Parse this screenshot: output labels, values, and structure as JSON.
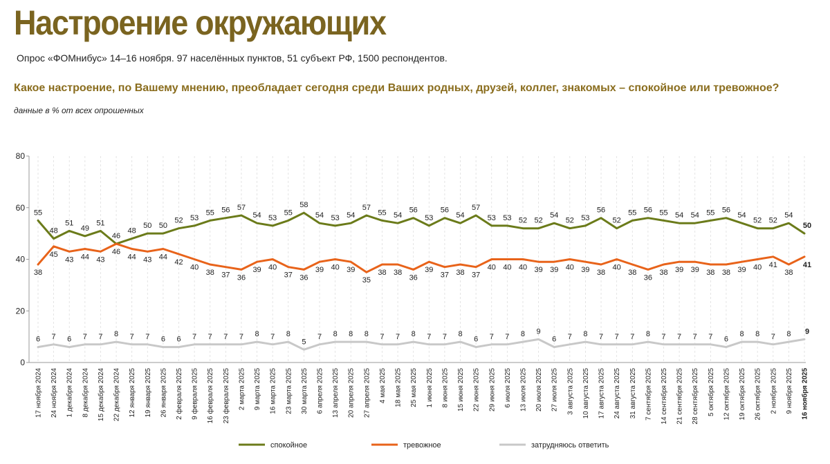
{
  "header": {
    "title": "Настроение окружающих",
    "subtitle": "Опрос «ФОМнибус» 14–16 ноября. 97 населённых пунктов, 51 субъект РФ, 1500 респондентов.",
    "question": "Какое настроение, по Вашему мнению, преобладает сегодня среди Ваших родных, друзей, коллег, знакомых – спокойное или тревожное?",
    "note": "данные в % от всех опрошенных"
  },
  "chart_data": {
    "type": "line",
    "ylim": [
      0,
      80
    ],
    "yticks": [
      0,
      20,
      40,
      60,
      80
    ],
    "grid": "vertical dashed",
    "legend": "bottom",
    "categories": [
      "17 ноября 2024",
      "24 ноября 2024",
      "1 декабря 2024",
      "8 декабря 2024",
      "15 декабря 2024",
      "22 декабря 2024",
      "12 января 2025",
      "19 января 2025",
      "26 января 2025",
      "2 февраля 2025",
      "9 февраля 2025",
      "16 февраля 2025",
      "23 февраля 2025",
      "2 марта 2025",
      "9 марта 2025",
      "16 марта 2025",
      "23 марта 2025",
      "30 марта 2025",
      "6 апреля 2025",
      "13 апреля 2025",
      "20 апреля 2025",
      "27 апреля 2025",
      "4 мая 2025",
      "18 мая 2025",
      "25 мая 2025",
      "1 июня 2025",
      "8 июня 2025",
      "15 июня 2025",
      "22 июня 2025",
      "29 июня 2025",
      "6 июля 2025",
      "13 июля 2025",
      "20 июля 2025",
      "27 июля 2025",
      "3 августа 2025",
      "10 августа 2025",
      "17 августа 2025",
      "24 августа 2025",
      "31 августа 2025",
      "7 сентября 2025",
      "14 сентября 2025",
      "21 сентября 2025",
      "28 сентября 2025",
      "5 октября 2025",
      "12 октября 2025",
      "19 октября 2025",
      "26 октября 2025",
      "2 ноября 2025",
      "9 ноября 2025",
      "16 ноября 2025"
    ],
    "series": [
      {
        "name": "спокойное",
        "color": "#6b7b1a",
        "label_pos": "above",
        "values": [
          55,
          48,
          51,
          49,
          51,
          46,
          48,
          50,
          50,
          52,
          53,
          55,
          56,
          57,
          54,
          53,
          55,
          58,
          54,
          53,
          54,
          57,
          55,
          54,
          56,
          53,
          56,
          54,
          57,
          53,
          53,
          52,
          52,
          54,
          52,
          53,
          56,
          52,
          55,
          56,
          55,
          54,
          54,
          55,
          56,
          54,
          52,
          52,
          54,
          50
        ]
      },
      {
        "name": "тревожное",
        "color": "#e8631a",
        "label_pos": "below",
        "values": [
          38,
          45,
          43,
          44,
          43,
          46,
          44,
          43,
          44,
          42,
          40,
          38,
          37,
          36,
          39,
          40,
          37,
          36,
          39,
          40,
          39,
          35,
          38,
          38,
          36,
          39,
          37,
          38,
          37,
          40,
          40,
          40,
          39,
          39,
          40,
          39,
          38,
          40,
          38,
          36,
          38,
          39,
          39,
          38,
          38,
          39,
          40,
          41,
          38,
          41
        ]
      },
      {
        "name": "затрудняюсь ответить",
        "color": "#c8c8c8",
        "label_pos": "above",
        "values": [
          6,
          7,
          6,
          7,
          7,
          8,
          7,
          7,
          6,
          6,
          7,
          7,
          7,
          7,
          8,
          7,
          8,
          5,
          7,
          8,
          8,
          8,
          7,
          7,
          8,
          7,
          7,
          8,
          6,
          7,
          7,
          8,
          9,
          6,
          7,
          8,
          7,
          7,
          7,
          8,
          7,
          7,
          7,
          7,
          6,
          8,
          8,
          7,
          8,
          9
        ]
      }
    ]
  }
}
